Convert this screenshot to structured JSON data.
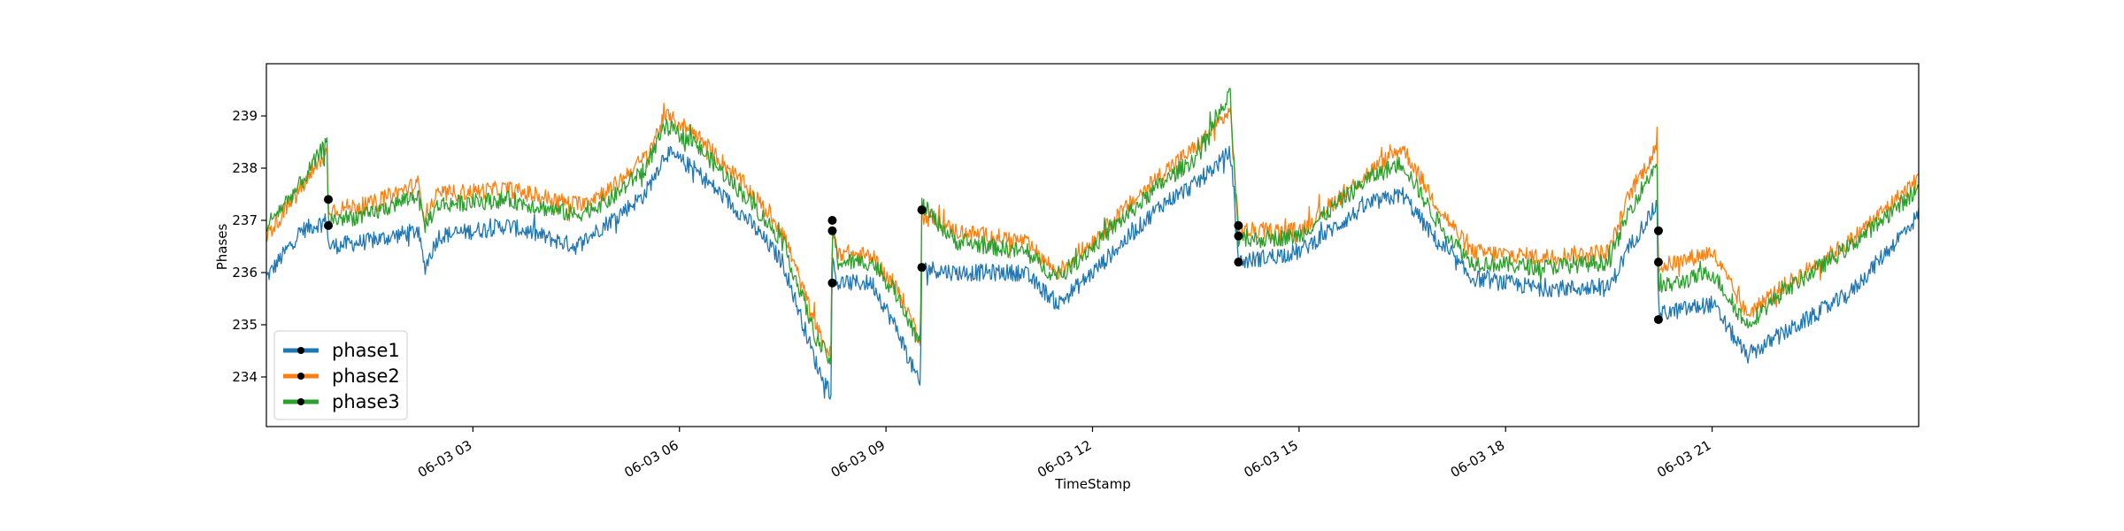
{
  "chart_data": {
    "type": "line",
    "xlabel": "TimeStamp",
    "ylabel": "Phases",
    "xlim": [
      0.0,
      24.0
    ],
    "ylim": [
      233.05,
      240.0
    ],
    "grid": false,
    "legend_position": "lower-left",
    "x_tick_values": [
      3,
      6,
      9,
      12,
      15,
      18,
      21
    ],
    "x_tick_labels": [
      "06-03 03",
      "06-03 06",
      "06-03 09",
      "06-03 12",
      "06-03 15",
      "06-03 18",
      "06-03 21"
    ],
    "y_tick_values": [
      234,
      235,
      236,
      237,
      238,
      239
    ],
    "y_tick_labels": [
      "234",
      "235",
      "236",
      "237",
      "238",
      "239"
    ],
    "series": [
      {
        "name": "phase1",
        "color": "#1f77b4",
        "x": [
          0.0,
          0.5,
          0.88,
          0.9,
          1.5,
          2.2,
          2.3,
          2.5,
          3.5,
          4.5,
          5.0,
          5.5,
          5.8,
          6.2,
          7.0,
          7.5,
          8.0,
          8.2,
          8.22,
          8.3,
          8.8,
          9.2,
          9.5,
          9.52,
          10.0,
          11.0,
          11.5,
          12.0,
          13.0,
          13.5,
          14.0,
          14.1,
          14.12,
          15.0,
          16.0,
          16.5,
          17.0,
          17.5,
          18.5,
          19.5,
          19.8,
          20.2,
          20.22,
          21.0,
          21.5,
          22.0,
          23.0,
          24.0
        ],
        "y": [
          235.9,
          236.8,
          237.0,
          236.5,
          236.6,
          236.8,
          236.1,
          236.7,
          236.9,
          236.5,
          237.0,
          237.5,
          238.3,
          238.0,
          237.0,
          236.2,
          234.2,
          233.7,
          236.2,
          235.8,
          235.8,
          234.8,
          233.8,
          236.1,
          236.0,
          236.0,
          235.4,
          236.0,
          237.3,
          237.7,
          238.3,
          236.8,
          236.2,
          236.4,
          237.3,
          237.5,
          236.6,
          235.9,
          235.7,
          235.7,
          236.5,
          237.3,
          235.2,
          235.4,
          234.4,
          234.8,
          235.6,
          237.1
        ]
      },
      {
        "name": "phase2",
        "color": "#ff7f0e",
        "x": [
          0.0,
          0.5,
          0.88,
          0.9,
          1.5,
          2.2,
          2.3,
          2.5,
          3.5,
          4.5,
          5.0,
          5.5,
          5.8,
          6.2,
          7.0,
          7.5,
          8.0,
          8.2,
          8.22,
          8.3,
          8.8,
          9.2,
          9.5,
          9.52,
          10.0,
          11.0,
          11.5,
          12.0,
          13.0,
          13.5,
          14.0,
          14.1,
          14.12,
          15.0,
          16.0,
          16.5,
          17.0,
          17.5,
          18.5,
          19.5,
          19.8,
          20.2,
          20.22,
          21.0,
          21.5,
          22.0,
          23.0,
          24.0
        ],
        "y": [
          236.7,
          237.6,
          238.3,
          237.2,
          237.3,
          237.7,
          237.1,
          237.5,
          237.6,
          237.3,
          237.6,
          238.2,
          239.0,
          238.7,
          237.6,
          236.8,
          234.9,
          234.4,
          236.8,
          236.4,
          236.3,
          235.6,
          234.7,
          237.1,
          236.8,
          236.6,
          236.0,
          236.6,
          237.9,
          238.4,
          239.1,
          237.2,
          236.8,
          236.8,
          237.9,
          238.4,
          237.3,
          236.4,
          236.3,
          236.4,
          237.5,
          238.4,
          236.1,
          236.4,
          235.2,
          235.7,
          236.6,
          237.8
        ]
      },
      {
        "name": "phase3",
        "color": "#2ca02c",
        "x": [
          0.0,
          0.5,
          0.88,
          0.9,
          1.5,
          2.2,
          2.3,
          2.5,
          3.5,
          4.5,
          5.0,
          5.5,
          5.8,
          6.2,
          7.0,
          7.5,
          8.0,
          8.2,
          8.22,
          8.3,
          8.8,
          9.2,
          9.5,
          9.52,
          10.0,
          11.0,
          11.5,
          12.0,
          13.0,
          13.5,
          14.0,
          14.1,
          14.12,
          15.0,
          16.0,
          16.5,
          17.0,
          17.5,
          18.5,
          19.5,
          19.8,
          20.2,
          20.22,
          21.0,
          21.5,
          22.0,
          23.0,
          24.0
        ],
        "y": [
          236.9,
          237.7,
          238.5,
          237.0,
          237.1,
          237.5,
          236.9,
          237.3,
          237.4,
          237.1,
          237.4,
          238.0,
          238.8,
          238.5,
          237.4,
          236.6,
          234.7,
          234.3,
          236.9,
          236.2,
          236.2,
          235.5,
          234.6,
          237.3,
          236.6,
          236.4,
          235.9,
          236.5,
          237.7,
          238.2,
          239.4,
          237.0,
          236.6,
          236.7,
          237.8,
          238.1,
          237.0,
          236.2,
          236.1,
          236.2,
          237.2,
          238.1,
          235.7,
          236.0,
          235.0,
          235.6,
          236.5,
          237.6
        ]
      }
    ],
    "markers": {
      "color": "#000000",
      "x": [
        0.9,
        0.9,
        8.22,
        8.22,
        8.22,
        9.52,
        9.52,
        14.12,
        14.12,
        14.12,
        20.22,
        20.22,
        20.22
      ],
      "y": [
        237.4,
        236.9,
        237.0,
        236.8,
        235.8,
        237.2,
        236.1,
        236.9,
        236.7,
        236.2,
        236.8,
        236.2,
        235.1
      ]
    }
  }
}
